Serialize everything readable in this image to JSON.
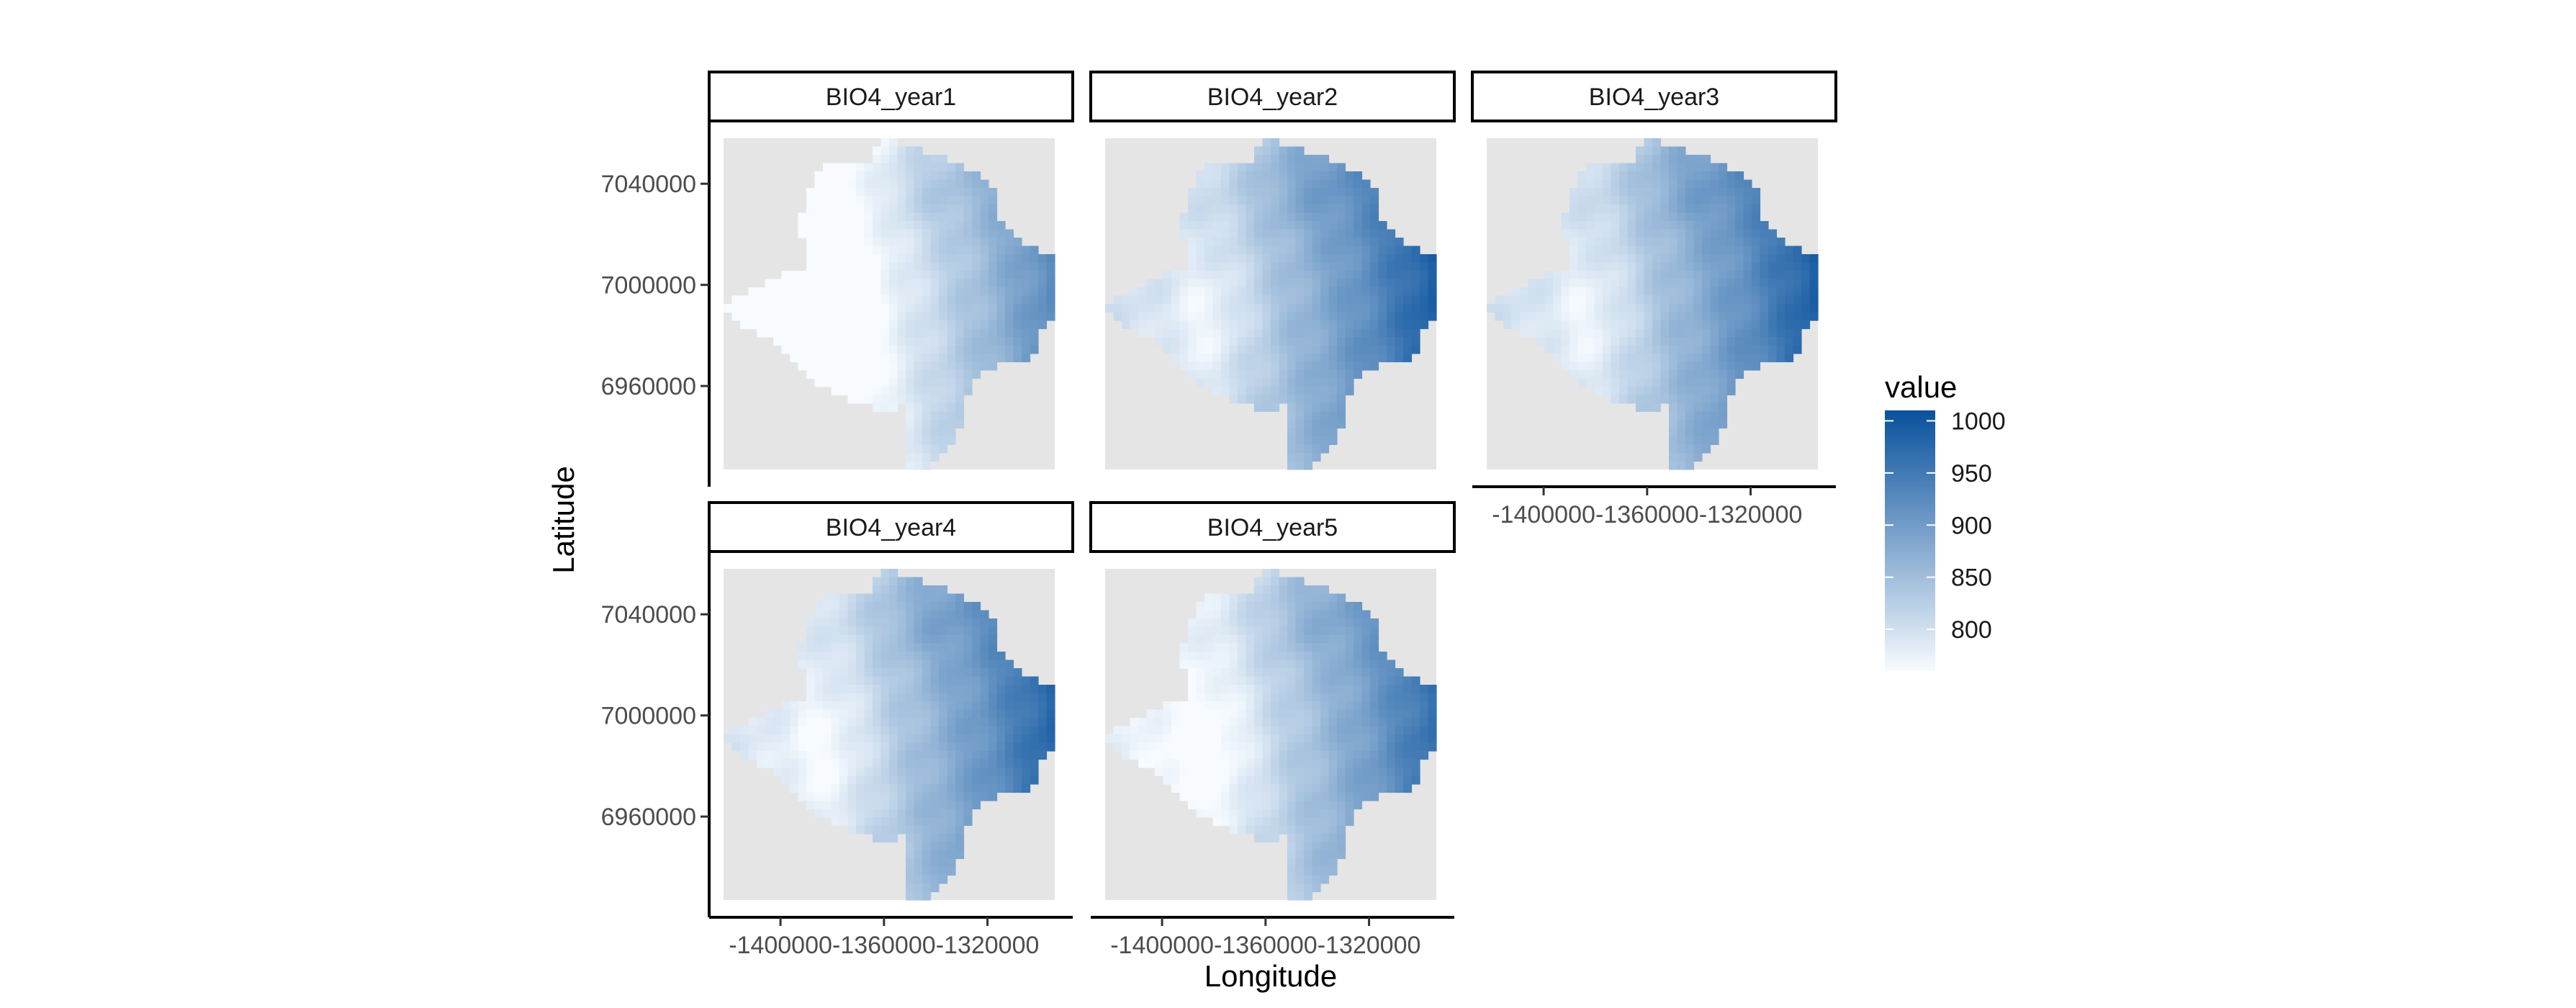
{
  "chart_data": {
    "type": "heatmap",
    "panels": [
      {
        "label": "BIO4_year1",
        "shift": -60,
        "show_y_axis": true,
        "show_x_axis": false
      },
      {
        "label": "BIO4_year2",
        "shift": 5,
        "show_y_axis": false,
        "show_x_axis": false
      },
      {
        "label": "BIO4_year3",
        "shift": 5,
        "show_y_axis": false,
        "show_x_axis": true
      },
      {
        "label": "BIO4_year4",
        "shift": -5,
        "show_y_axis": true,
        "show_x_axis": true
      },
      {
        "label": "BIO4_year5",
        "shift": -20,
        "show_y_axis": false,
        "show_x_axis": true
      }
    ],
    "xlabel": "Longitude",
    "ylabel": "Latitude",
    "x_ticks": [
      -1400000,
      -1360000,
      -1320000
    ],
    "x_tick_labels": [
      "-1400000",
      "-1360000",
      "-1320000"
    ],
    "y_ticks": [
      6960000,
      7000000,
      7040000
    ],
    "y_tick_labels": [
      "6960000",
      "7000000",
      "7040000"
    ],
    "xlim": [
      -1422000,
      -1294000
    ],
    "ylim": [
      6927000,
      7058000
    ],
    "legend": {
      "title": "value",
      "range": [
        760,
        1010
      ],
      "ticks": [
        800,
        850,
        900,
        950,
        1000
      ],
      "tick_labels": [
        "800",
        "850",
        "900",
        "950",
        "1000"
      ],
      "color_low": "#f7fbff",
      "color_high": "#08519c",
      "position": "right"
    },
    "panel_background": "#e5e5e5"
  }
}
